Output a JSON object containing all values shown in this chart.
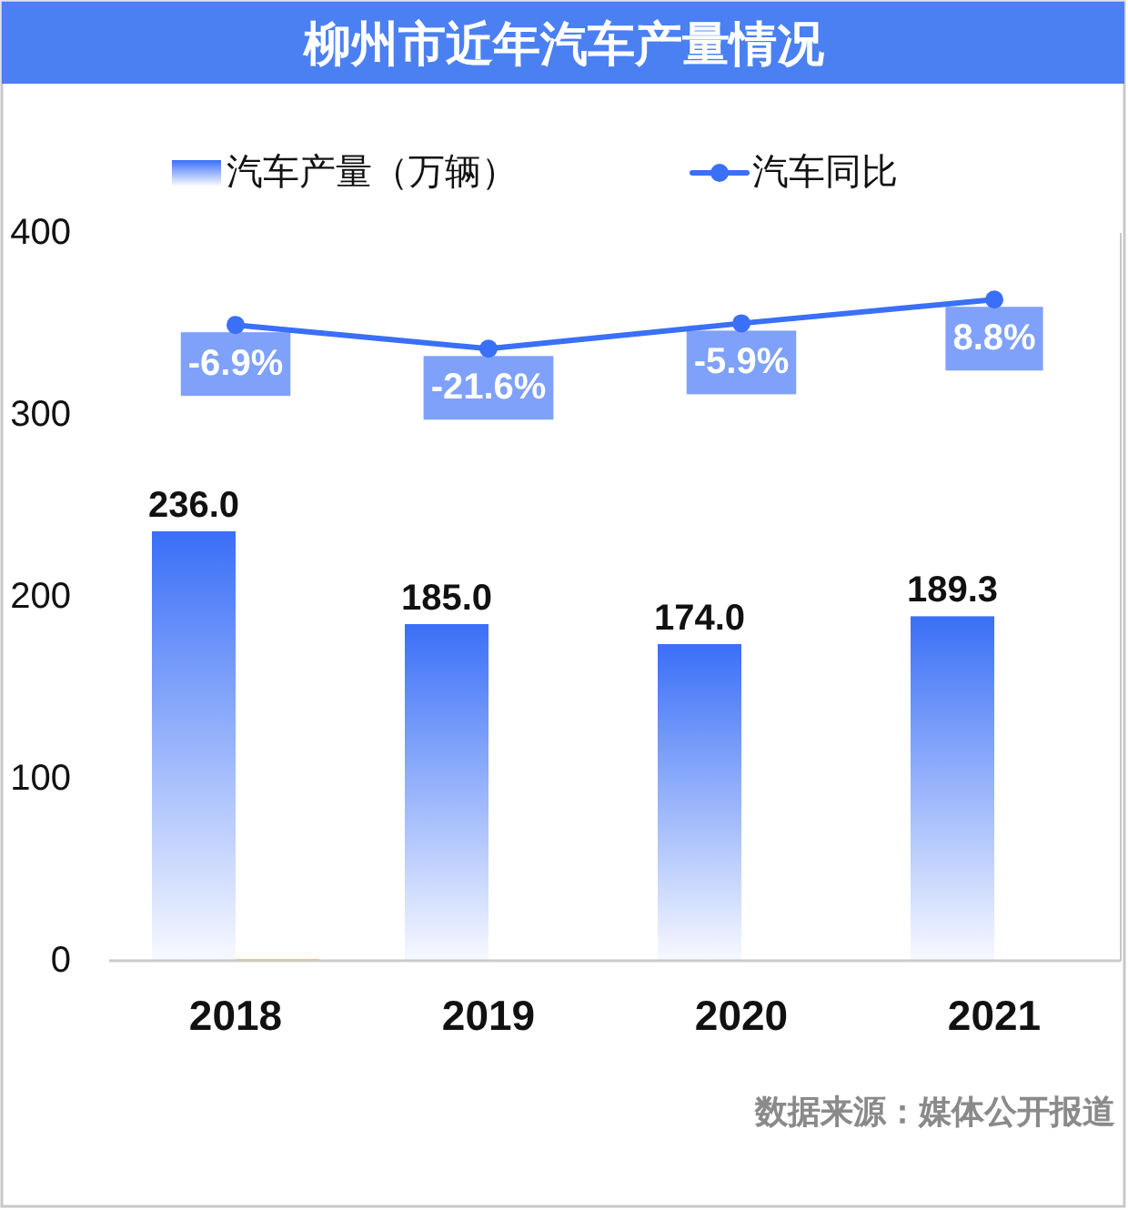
{
  "chart_data": {
    "type": "bar",
    "title": "柳州市近年汽车产量情况",
    "categories": [
      "2018",
      "2019",
      "2020",
      "2021"
    ],
    "series": [
      {
        "name": "汽车产量（万辆）",
        "color": "#3a6ff7",
        "values": [
          236.0,
          185.0,
          174.0,
          189.3
        ],
        "value_labels": [
          "236.0",
          "185.0",
          "174.0",
          "189.3"
        ]
      },
      {
        "color": "#f5c342",
        "values": [
          1,
          null,
          null,
          null
        ]
      },
      {
        "name": "汽车同比",
        "type": "line",
        "axis": "y2",
        "color": "#3a6ff7",
        "values": [
          -6.9,
          -21.6,
          -5.9,
          8.8
        ],
        "value_labels": [
          "-6.9%",
          "-21.6%",
          "-5.9%",
          "8.8%"
        ]
      }
    ],
    "ylim": [
      0,
      400
    ],
    "yticks": [
      0,
      100,
      200,
      300,
      400
    ],
    "y2lim": [
      -400,
      50
    ],
    "grid": false,
    "legend": "top",
    "marker": "circle",
    "annotations": [
      "数据来源：媒体公开报道"
    ]
  }
}
